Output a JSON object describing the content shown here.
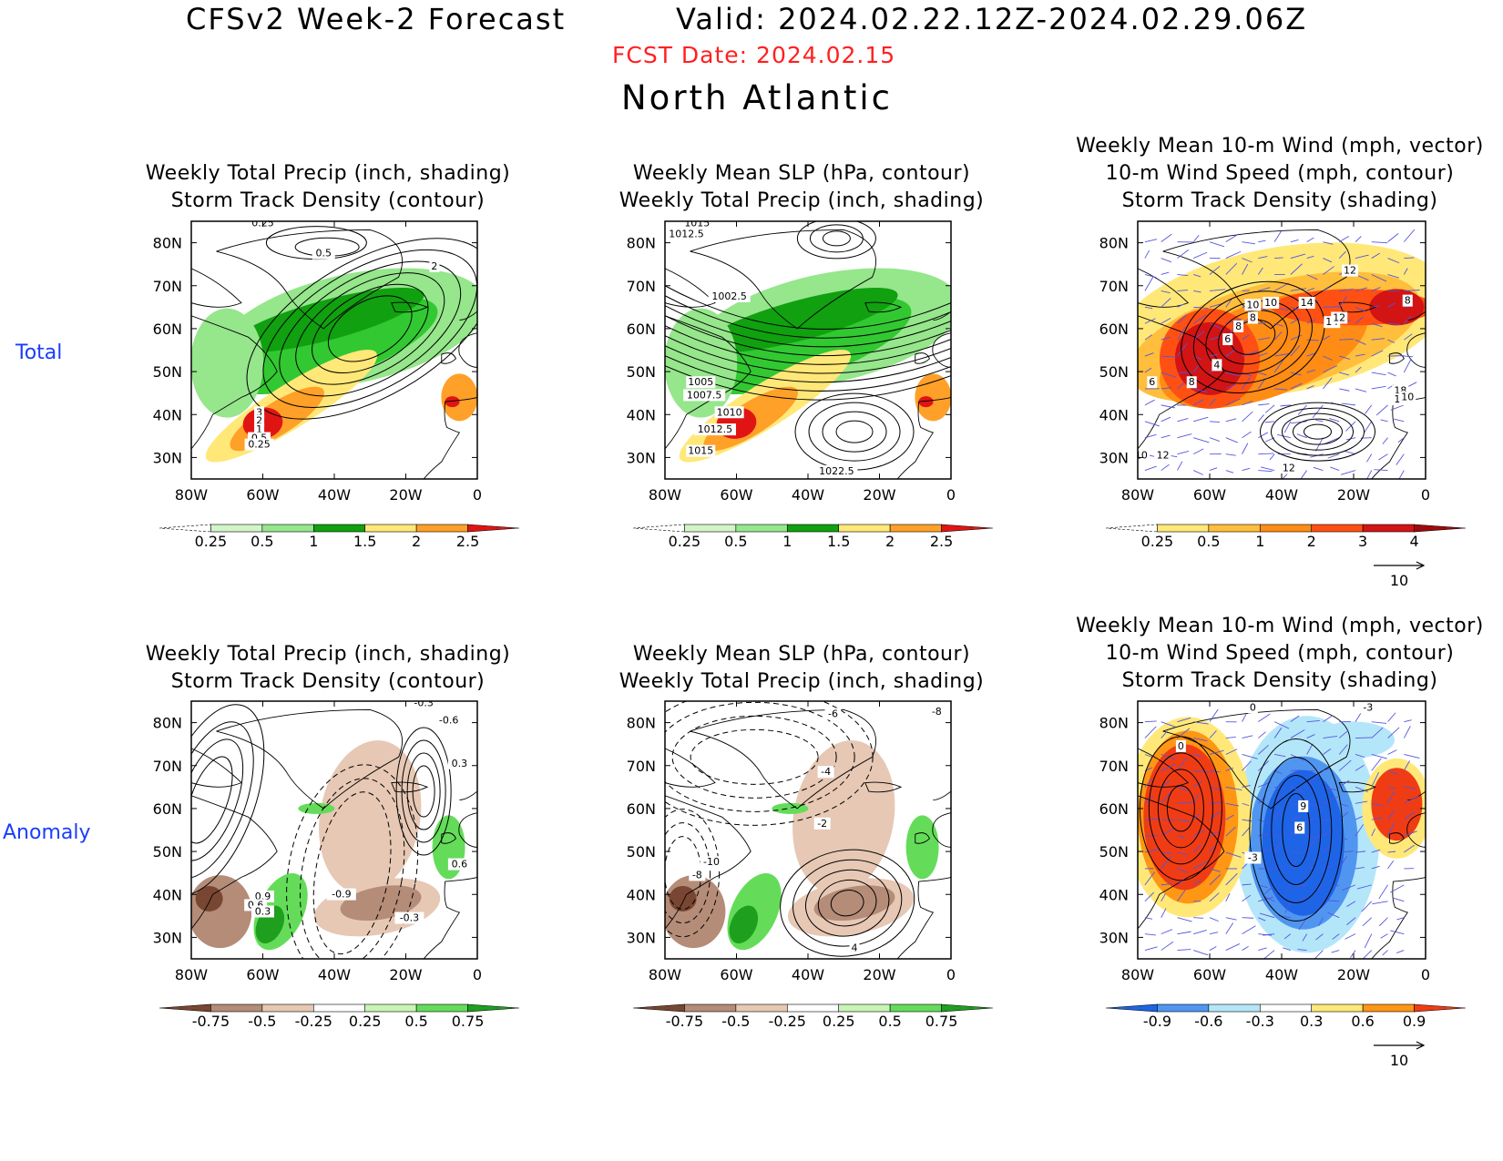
{
  "header": {
    "title": "CFSv2 Week-2 Forecast",
    "valid": "Valid: 2024.02.22.12Z-2024.02.29.06Z",
    "fcst_date": "FCST Date: 2024.02.15",
    "region": "North Atlantic"
  },
  "row_labels": {
    "total": "Total",
    "anomaly": "Anomaly"
  },
  "map_axes": {
    "lon_ticks": [
      "80W",
      "60W",
      "40W",
      "20W",
      "0"
    ],
    "lat_ticks": [
      "80N",
      "70N",
      "60N",
      "50N",
      "40N",
      "30N"
    ]
  },
  "colors": {
    "precip": [
      "#d2f5c8",
      "#96e68c",
      "#32c832",
      "#10a010",
      "#ffe878",
      "#ffa028",
      "#e11414"
    ],
    "precip_anom": [
      "#784632",
      "#b48c78",
      "#e6c8b4",
      "#ffffff",
      "#c8f5b4",
      "#64dc5a",
      "#1ea01e"
    ],
    "storm": [
      "#ffe878",
      "#ffbe3c",
      "#ff8c14",
      "#ff5014",
      "#d21414",
      "#a00a0a"
    ],
    "storm_anom": [
      "#1e64e6",
      "#5096f0",
      "#b4e6fa",
      "#ffffff",
      "#ffe878",
      "#ff9614",
      "#f03c14"
    ],
    "vector": "#5555dd"
  },
  "panels": {
    "p1": {
      "title1": "Weekly Total Precip (inch, shading)",
      "title2": "Storm Track Density (contour)",
      "colorbar": [
        "0.25",
        "0.5",
        "1",
        "1.5",
        "2",
        "2.5"
      ],
      "contour_labels": [
        "0.25",
        "0.5",
        "2",
        "3",
        "2",
        "1",
        "0.5",
        "0.25"
      ]
    },
    "p2": {
      "title1": "Weekly Mean SLP (hPa, contour)",
      "title2": "Weekly Total Precip (inch, shading)",
      "colorbar": [
        "0.25",
        "0.5",
        "1",
        "1.5",
        "2",
        "2.5"
      ],
      "contour_labels": [
        "1015",
        "1012.5",
        "1002.5",
        "1005",
        "1007.5",
        "1010",
        "1012.5",
        "1015",
        "1022.5"
      ]
    },
    "p3": {
      "title0": "Weekly Mean 10-m Wind (mph, vector)",
      "title1": "10-m Wind Speed (mph, contour)",
      "title2": "Storm Track Density (shading)",
      "colorbar": [
        "0.25",
        "0.5",
        "1",
        "2",
        "3",
        "4"
      ],
      "vector_ref": "10",
      "contour_labels": [
        "12",
        "10",
        "10",
        "14",
        "8",
        "8",
        "14",
        "12",
        "8",
        "6",
        "4",
        "6",
        "8",
        "18",
        "16",
        "10",
        "10",
        "12",
        "12"
      ]
    },
    "p4": {
      "title1": "Weekly Total Precip (inch, shading)",
      "title2": "Storm Track Density (contour)",
      "colorbar": [
        "-0.75",
        "-0.5",
        "-0.25",
        "0.25",
        "0.5",
        "0.75"
      ],
      "contour_labels": [
        "-0.3",
        "-0.6",
        "0.3",
        "0.6",
        "-0.9",
        "0.9",
        "0.6",
        "0.3",
        "-0.3"
      ]
    },
    "p5": {
      "title1": "Weekly Mean SLP (hPa, contour)",
      "title2": "Weekly Total Precip (inch, shading)",
      "colorbar": [
        "-0.75",
        "-0.5",
        "-0.25",
        "0.25",
        "0.5",
        "0.75"
      ],
      "contour_labels": [
        "-6",
        "-8",
        "-4",
        "-2",
        "-10",
        "-8",
        "4"
      ]
    },
    "p6": {
      "title0": "Weekly Mean 10-m Wind (mph, vector)",
      "title1": "10-m Wind Speed (mph, contour)",
      "title2": "Storm Track Density (shading)",
      "colorbar": [
        "-0.9",
        "-0.6",
        "-0.3",
        "0.3",
        "0.6",
        "0.9"
      ],
      "vector_ref": "10",
      "contour_labels": [
        "0",
        "0",
        "-3",
        "9",
        "6",
        "-3"
      ]
    }
  }
}
